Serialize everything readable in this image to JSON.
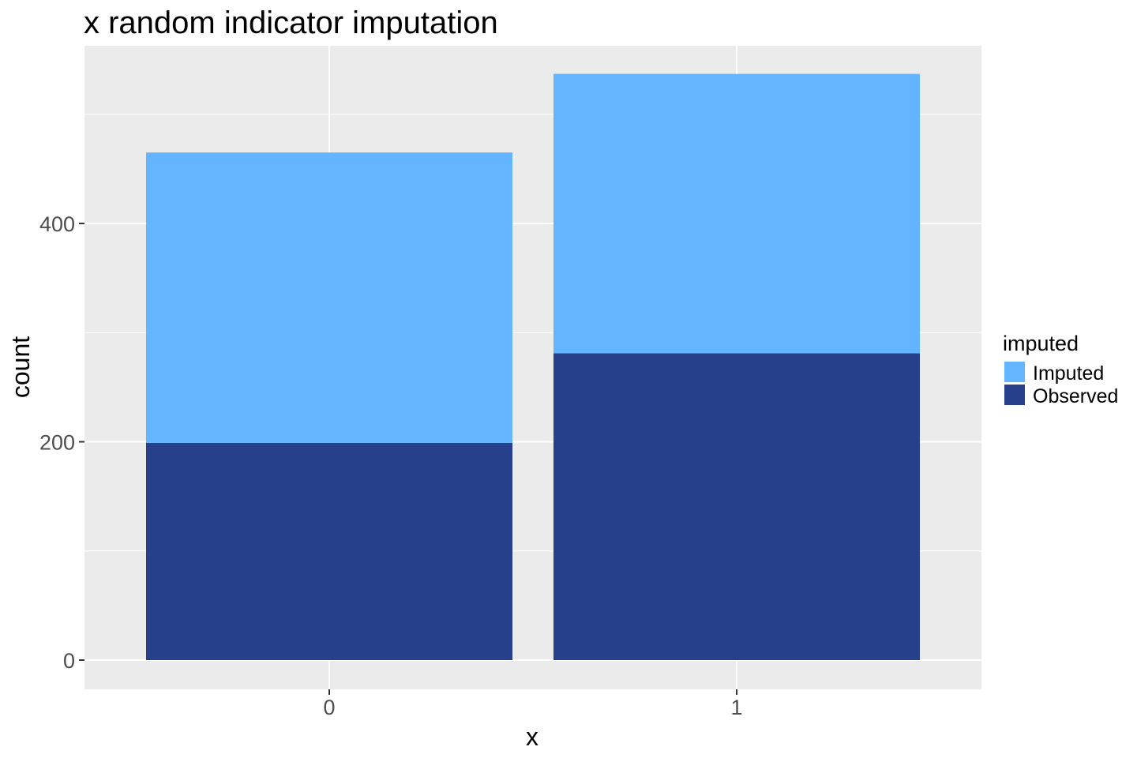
{
  "chart_data": {
    "type": "bar",
    "stacked": true,
    "title": "x random indicator imputation",
    "xlabel": "x",
    "ylabel": "count",
    "categories": [
      "0",
      "1"
    ],
    "series": [
      {
        "name": "Observed",
        "values": [
          199,
          281
        ],
        "color": "#26408B"
      },
      {
        "name": "Imputed",
        "values": [
          266,
          256
        ],
        "color": "#63B5FF"
      }
    ],
    "ylim": [
      0,
      540
    ],
    "y_ticks": [
      0,
      200,
      400
    ],
    "grid": true,
    "panel_background": "#EBEBEB",
    "legend": {
      "title": "imputed",
      "position": "right",
      "entries": [
        {
          "label": "Imputed",
          "color": "#63B5FF"
        },
        {
          "label": "Observed",
          "color": "#26408B"
        }
      ]
    }
  }
}
